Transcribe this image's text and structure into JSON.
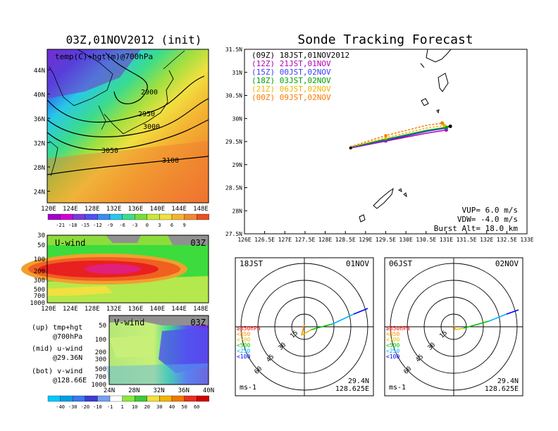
{
  "left": {
    "title": "03Z,01NOV2012 (init)",
    "map": {
      "label": "temp(C)+hgt(m)@700hPa",
      "lat_ticks": [
        "44N",
        "40N",
        "36N",
        "32N",
        "28N",
        "24N"
      ],
      "lon_ticks": [
        "120E",
        "124E",
        "128E",
        "132E",
        "136E",
        "140E",
        "144E",
        "148E"
      ],
      "contours": [
        "2900",
        "2950",
        "3000",
        "3050",
        "3100"
      ]
    },
    "temp_scale": [
      "-21",
      "-18",
      "-15",
      "-12",
      "-9",
      "-6",
      "-3",
      "0",
      "3",
      "6",
      "9"
    ],
    "uwind": {
      "label": "U-wind",
      "time": "03Z",
      "p_ticks": [
        "30",
        "50",
        "100",
        "200",
        "300",
        "500",
        "700",
        "1000"
      ],
      "lon_ticks": [
        "120E",
        "124E",
        "128E",
        "132E",
        "136E",
        "140E",
        "144E",
        "148E"
      ]
    },
    "vwind": {
      "label": "V-wind",
      "time": "03Z",
      "p_ticks": [
        "50",
        "100",
        "200",
        "300",
        "500",
        "700",
        "1000"
      ],
      "lat_ticks": [
        "24N",
        "28N",
        "32N",
        "36N",
        "40N"
      ]
    },
    "notes": [
      {
        "a": "(up) tmp+hgt",
        "b": "@700hPa"
      },
      {
        "a": "(mid) u-wind",
        "b": "@29.36N"
      },
      {
        "a": "(bot) v-wind",
        "b": "@128.66E"
      }
    ],
    "wind_scale": [
      "-40",
      "-30",
      "-20",
      "-10",
      "-1",
      "1",
      "10",
      "20",
      "30",
      "40",
      "50",
      "60"
    ]
  },
  "right": {
    "title": "Sonde Tracking Forecast",
    "lat_ticks": [
      "31.5N",
      "31N",
      "30.5N",
      "30N",
      "29.5N",
      "29N",
      "28.5N",
      "28N",
      "27.5N"
    ],
    "lon_ticks": [
      "126E",
      "126.5E",
      "127E",
      "127.5E",
      "128E",
      "128.5E",
      "129E",
      "129.5E",
      "130E",
      "130.5E",
      "131E",
      "131.5E",
      "132E",
      "132.5E",
      "133E"
    ],
    "legend": [
      {
        "z": "(09Z)",
        "t": "18JST,01NOV2012",
        "color": "#000000"
      },
      {
        "z": "(12Z)",
        "t": "21JST,01NOV",
        "color": "#b400b4"
      },
      {
        "z": "(15Z)",
        "t": "00JST,02NOV",
        "color": "#3c3cff"
      },
      {
        "z": "(18Z)",
        "t": "03JST,02NOV",
        "color": "#00a000"
      },
      {
        "z": "(21Z)",
        "t": "06JST,02NOV",
        "color": "#f0b400"
      },
      {
        "z": "(00Z)",
        "t": "09JST,02NOV",
        "color": "#ff7800"
      }
    ],
    "info": [
      "VUP= 6.0 m/s",
      "VDW= -4.0 m/s",
      "Burst Alt= 18.0 km"
    ]
  },
  "hodo": [
    {
      "time": "18JST",
      "date": "01NOV",
      "lat": "29.4N",
      "lon": "128.625E",
      "unit": "ms-1"
    },
    {
      "time": "06JST",
      "date": "02NOV",
      "lat": "29.4N",
      "lon": "128.625E",
      "unit": "ms-1"
    }
  ],
  "hodo_rings": [
    "15",
    "30",
    "45",
    "60"
  ],
  "hodo_legend": [
    {
      "t": "≥850hPa",
      "color": "#ff0000"
    },
    {
      "t": "<850",
      "color": "#ff8c00"
    },
    {
      "t": "<700",
      "color": "#e0c000"
    },
    {
      "t": "<500",
      "color": "#00c000"
    },
    {
      "t": "<250",
      "color": "#00b4ff"
    },
    {
      "t": "<100",
      "color": "#0000ff"
    }
  ],
  "chart_data": {
    "type": "line",
    "title": "Sonde Tracking Forecast",
    "xlim": [
      126,
      133
    ],
    "ylim": [
      27.5,
      31.5
    ],
    "launch": [
      128.63,
      29.36
    ],
    "series": [
      {
        "name": "(09Z) 18JST,01NOV2012",
        "color": "#000000",
        "x": [
          128.63,
          129.5,
          130.5,
          131.1
        ],
        "y": [
          29.36,
          29.52,
          29.72,
          29.83
        ]
      },
      {
        "name": "(12Z) 21JST,01NOV",
        "color": "#b400b4",
        "x": [
          128.63,
          129.5,
          130.5,
          131.0
        ],
        "y": [
          29.36,
          29.51,
          29.68,
          29.75
        ]
      },
      {
        "name": "(15Z) 00JST,02NOV",
        "color": "#3c3cff",
        "x": [
          128.63,
          129.5,
          130.5,
          131.0
        ],
        "y": [
          29.37,
          29.53,
          29.72,
          29.79
        ]
      },
      {
        "name": "(18Z) 03JST,02NOV",
        "color": "#00a000",
        "x": [
          128.63,
          129.5,
          130.5,
          131.0
        ],
        "y": [
          29.38,
          29.55,
          29.74,
          29.81
        ]
      },
      {
        "name": "(21Z) 06JST,02NOV",
        "color": "#f0b400",
        "x": [
          128.63,
          129.5,
          130.5,
          130.95
        ],
        "y": [
          29.38,
          29.58,
          29.79,
          29.85
        ]
      },
      {
        "name": "(00Z) 09JST,02NOV",
        "color": "#ff7800",
        "x": [
          128.63,
          129.5,
          130.5,
          130.9
        ],
        "y": [
          29.39,
          29.63,
          29.85,
          29.9
        ]
      }
    ]
  }
}
